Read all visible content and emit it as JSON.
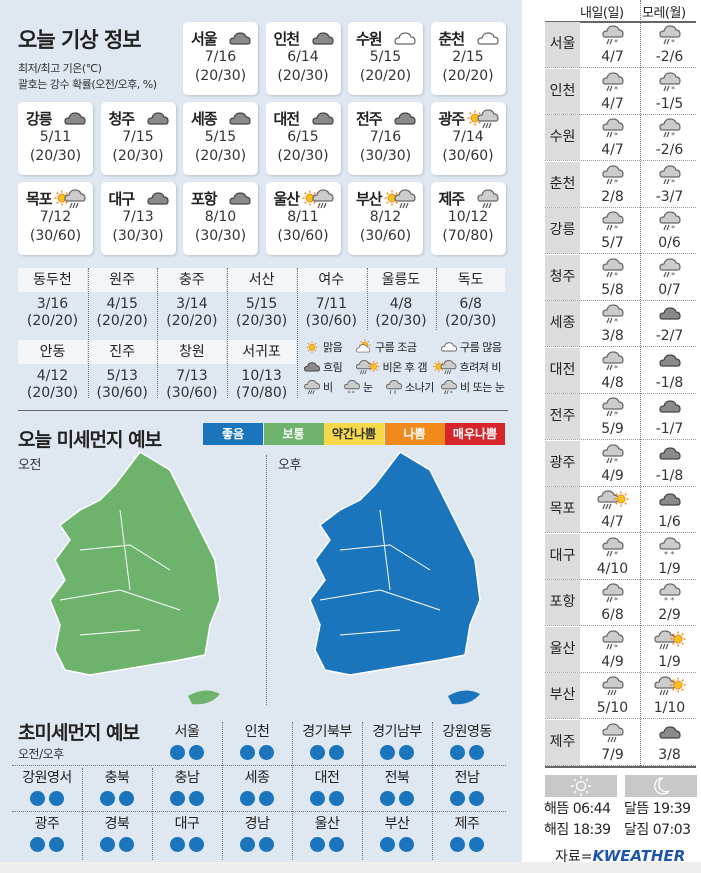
{
  "today": {
    "title": "오늘 기상 정보",
    "subtitle1": "최저/최고 기온(℃)",
    "subtitle2": "괄호는 강수 확률(오전/오후, %)",
    "cities": [
      {
        "name": "서울",
        "icon": "cloud-dark",
        "temp": "7/16",
        "prob": "(20/30)"
      },
      {
        "name": "인천",
        "icon": "cloud-dark",
        "temp": "6/14",
        "prob": "(20/30)"
      },
      {
        "name": "수원",
        "icon": "cloud-light",
        "temp": "5/15",
        "prob": "(20/20)"
      },
      {
        "name": "춘천",
        "icon": "cloud-light",
        "temp": "2/15",
        "prob": "(20/20)"
      },
      {
        "name": "강릉",
        "icon": "cloud-dark",
        "temp": "5/11",
        "prob": "(20/30)"
      },
      {
        "name": "청주",
        "icon": "cloud-dark",
        "temp": "7/15",
        "prob": "(20/30)"
      },
      {
        "name": "세종",
        "icon": "cloud-dark",
        "temp": "5/15",
        "prob": "(20/30)"
      },
      {
        "name": "대전",
        "icon": "cloud-dark",
        "temp": "6/15",
        "prob": "(20/30)"
      },
      {
        "name": "전주",
        "icon": "cloud-dark",
        "temp": "7/16",
        "prob": "(30/30)"
      },
      {
        "name": "광주",
        "icon": "sun-rain",
        "temp": "7/14",
        "prob": "(30/60)"
      },
      {
        "name": "목포",
        "icon": "sun-rain",
        "temp": "7/12",
        "prob": "(30/60)"
      },
      {
        "name": "대구",
        "icon": "cloud-dark",
        "temp": "7/13",
        "prob": "(30/30)"
      },
      {
        "name": "포항",
        "icon": "cloud-dark",
        "temp": "8/10",
        "prob": "(30/30)"
      },
      {
        "name": "울산",
        "icon": "sun-rain",
        "temp": "8/11",
        "prob": "(30/60)"
      },
      {
        "name": "부산",
        "icon": "sun-rain",
        "temp": "8/12",
        "prob": "(30/60)"
      },
      {
        "name": "제주",
        "icon": "rain",
        "temp": "10/12",
        "prob": "(70/80)"
      }
    ],
    "small": [
      {
        "name": "동두천",
        "temp": "3/16",
        "prob": "(20/20)"
      },
      {
        "name": "원주",
        "temp": "4/15",
        "prob": "(20/20)"
      },
      {
        "name": "충주",
        "temp": "3/14",
        "prob": "(20/20)"
      },
      {
        "name": "서산",
        "temp": "5/15",
        "prob": "(20/30)"
      },
      {
        "name": "여수",
        "temp": "7/11",
        "prob": "(30/60)"
      },
      {
        "name": "울릉도",
        "temp": "4/8",
        "prob": "(20/30)"
      },
      {
        "name": "독도",
        "temp": "6/8",
        "prob": "(20/30)"
      },
      {
        "name": "안동",
        "temp": "4/12",
        "prob": "(20/30)"
      },
      {
        "name": "진주",
        "temp": "5/13",
        "prob": "(30/60)"
      },
      {
        "name": "창원",
        "temp": "7/13",
        "prob": "(30/60)"
      },
      {
        "name": "서귀포",
        "temp": "10/13",
        "prob": "(70/80)"
      }
    ],
    "legend": [
      {
        "icon": "sun",
        "label": "맑음"
      },
      {
        "icon": "sun-cloud",
        "label": "구름 조금"
      },
      {
        "icon": "cloud-light",
        "label": "구름 많음"
      },
      {
        "icon": "cloud-dark",
        "label": "흐림"
      },
      {
        "icon": "rain-sun",
        "label": "비온 후 갬"
      },
      {
        "icon": "sun-rain",
        "label": "흐려져 비"
      },
      {
        "icon": "rain",
        "label": "비"
      },
      {
        "icon": "snow",
        "label": "눈"
      },
      {
        "icon": "shower",
        "label": "소나기"
      },
      {
        "icon": "rain-snow",
        "label": "비 또는 눈"
      }
    ]
  },
  "dust": {
    "title": "오늘 미세먼지 예보",
    "am": "오전",
    "pm": "오후",
    "am_level": "보통",
    "pm_level": "좋음",
    "levels": [
      {
        "label": "좋음",
        "color": "#1b75bc"
      },
      {
        "label": "보통",
        "color": "#6db36b"
      },
      {
        "label": "약간나쁨",
        "color": "#f5d94a"
      },
      {
        "label": "나쁨",
        "color": "#f08a1c"
      },
      {
        "label": "매우나쁨",
        "color": "#d7262b"
      }
    ]
  },
  "ultrafine": {
    "title": "초미세먼지 예보",
    "subtitle": "오전/오후",
    "dot_color": "#1b75bc",
    "regions": [
      {
        "name": "서울",
        "am": "좋음",
        "pm": "좋음"
      },
      {
        "name": "인천",
        "am": "좋음",
        "pm": "좋음"
      },
      {
        "name": "경기북부",
        "am": "좋음",
        "pm": "좋음"
      },
      {
        "name": "경기남부",
        "am": "좋음",
        "pm": "좋음"
      },
      {
        "name": "강원영동",
        "am": "좋음",
        "pm": "좋음"
      },
      {
        "name": "강원영서",
        "am": "좋음",
        "pm": "좋음"
      },
      {
        "name": "충북",
        "am": "좋음",
        "pm": "좋음"
      },
      {
        "name": "충남",
        "am": "좋음",
        "pm": "좋음"
      },
      {
        "name": "세종",
        "am": "좋음",
        "pm": "좋음"
      },
      {
        "name": "대전",
        "am": "좋음",
        "pm": "좋음"
      },
      {
        "name": "전북",
        "am": "좋음",
        "pm": "좋음"
      },
      {
        "name": "전남",
        "am": "좋음",
        "pm": "좋음"
      },
      {
        "name": "광주",
        "am": "좋음",
        "pm": "좋음"
      },
      {
        "name": "경북",
        "am": "좋음",
        "pm": "좋음"
      },
      {
        "name": "대구",
        "am": "좋음",
        "pm": "좋음"
      },
      {
        "name": "경남",
        "am": "좋음",
        "pm": "좋음"
      },
      {
        "name": "울산",
        "am": "좋음",
        "pm": "좋음"
      },
      {
        "name": "부산",
        "am": "좋음",
        "pm": "좋음"
      },
      {
        "name": "제주",
        "am": "좋음",
        "pm": "좋음"
      }
    ]
  },
  "forecast": {
    "col1": "내일(일)",
    "col2": "모레(월)",
    "rows": [
      {
        "city": "서울",
        "d1_icon": "rain-snow",
        "d1": "4/7",
        "d2_icon": "rain-snow",
        "d2": "-2/6"
      },
      {
        "city": "인천",
        "d1_icon": "rain-snow",
        "d1": "4/7",
        "d2_icon": "rain-snow",
        "d2": "-1/5"
      },
      {
        "city": "수원",
        "d1_icon": "rain-snow",
        "d1": "4/7",
        "d2_icon": "rain-snow",
        "d2": "-2/6"
      },
      {
        "city": "춘천",
        "d1_icon": "rain-snow",
        "d1": "2/8",
        "d2_icon": "rain-snow",
        "d2": "-3/7"
      },
      {
        "city": "강릉",
        "d1_icon": "rain-snow",
        "d1": "5/7",
        "d2_icon": "rain-snow",
        "d2": "0/6"
      },
      {
        "city": "청주",
        "d1_icon": "rain-snow",
        "d1": "5/8",
        "d2_icon": "rain-snow",
        "d2": "0/7"
      },
      {
        "city": "세종",
        "d1_icon": "rain-snow",
        "d1": "3/8",
        "d2_icon": "cloud-dark",
        "d2": "-2/7"
      },
      {
        "city": "대전",
        "d1_icon": "rain-snow",
        "d1": "4/8",
        "d2_icon": "cloud-dark",
        "d2": "-1/8"
      },
      {
        "city": "전주",
        "d1_icon": "rain-snow",
        "d1": "5/9",
        "d2_icon": "cloud-dark",
        "d2": "-1/7"
      },
      {
        "city": "광주",
        "d1_icon": "rain-snow",
        "d1": "4/9",
        "d2_icon": "cloud-dark",
        "d2": "-1/8"
      },
      {
        "city": "목포",
        "d1_icon": "rain-sun",
        "d1": "4/7",
        "d2_icon": "cloud-dark",
        "d2": "1/6"
      },
      {
        "city": "대구",
        "d1_icon": "rain-snow",
        "d1": "4/10",
        "d2_icon": "snow",
        "d2": "1/9"
      },
      {
        "city": "포항",
        "d1_icon": "rain-snow",
        "d1": "6/8",
        "d2_icon": "snow",
        "d2": "2/9"
      },
      {
        "city": "울산",
        "d1_icon": "rain-snow",
        "d1": "4/9",
        "d2_icon": "rain-sun",
        "d2": "1/9"
      },
      {
        "city": "부산",
        "d1_icon": "rain",
        "d1": "5/10",
        "d2_icon": "rain-sun",
        "d2": "1/10"
      },
      {
        "city": "제주",
        "d1_icon": "rain",
        "d1": "7/9",
        "d2_icon": "cloud-dark",
        "d2": "3/8"
      }
    ]
  },
  "sun_moon": {
    "sunrise": "해뜸 06:44",
    "sunset": "해짐 18:39",
    "moonrise": "달뜸 19:39",
    "moonset": "달짐 07:03"
  },
  "source": {
    "prefix": "자료=",
    "logo": "KWEATHER"
  }
}
